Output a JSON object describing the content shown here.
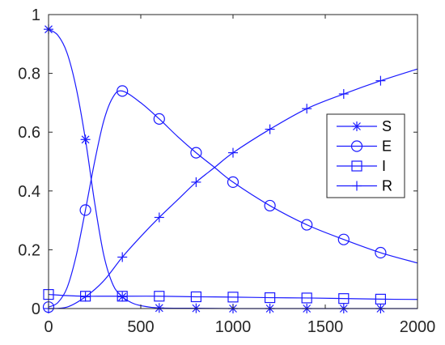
{
  "chart_data": {
    "type": "line",
    "title": "",
    "xlabel": "",
    "ylabel": "",
    "xlim": [
      0,
      2000
    ],
    "ylim": [
      0,
      1
    ],
    "grid": false,
    "legend_position": "right-middle",
    "x_ticks": [
      0,
      500,
      1000,
      1500,
      2000
    ],
    "x_tick_labels": [
      "0",
      "500",
      "1000",
      "1500",
      "2000"
    ],
    "y_ticks": [
      0,
      0.2,
      0.4,
      0.6,
      0.8,
      1
    ],
    "y_tick_labels": [
      "0",
      "0.2",
      "0.4",
      "0.6",
      "0.8",
      "1"
    ],
    "line_color": "#1a1aff",
    "series": [
      {
        "name": "S",
        "marker": "asterisk",
        "x": [
          0,
          50,
          100,
          150,
          200,
          250,
          300,
          350,
          400,
          450,
          500,
          600,
          800,
          1000,
          1200,
          1400,
          1600,
          1800,
          2000
        ],
        "values": [
          0.95,
          0.93,
          0.87,
          0.75,
          0.575,
          0.36,
          0.18,
          0.08,
          0.04,
          0.02,
          0.01,
          0.002,
          0.001,
          0.0,
          0.0,
          0.0,
          0.0,
          0.0,
          0.0
        ],
        "marker_x": [
          0,
          200,
          400,
          600,
          800,
          1000,
          1200,
          1400,
          1600,
          1800
        ]
      },
      {
        "name": "E",
        "marker": "circle",
        "x": [
          0,
          50,
          100,
          150,
          200,
          250,
          300,
          350,
          400,
          500,
          600,
          700,
          800,
          900,
          1000,
          1200,
          1400,
          1600,
          1800,
          2000
        ],
        "values": [
          0.005,
          0.02,
          0.07,
          0.18,
          0.335,
          0.5,
          0.64,
          0.72,
          0.74,
          0.7,
          0.645,
          0.585,
          0.53,
          0.48,
          0.43,
          0.35,
          0.285,
          0.235,
          0.19,
          0.155
        ],
        "marker_x": [
          0,
          200,
          400,
          600,
          800,
          1000,
          1200,
          1400,
          1600,
          1800
        ]
      },
      {
        "name": "I",
        "marker": "square",
        "x": [
          0,
          100,
          200,
          300,
          400,
          600,
          800,
          1000,
          1200,
          1400,
          1600,
          1800,
          2000
        ],
        "values": [
          0.048,
          0.044,
          0.042,
          0.042,
          0.042,
          0.042,
          0.04,
          0.039,
          0.037,
          0.036,
          0.034,
          0.032,
          0.031
        ],
        "marker_x": [
          0,
          200,
          400,
          600,
          800,
          1000,
          1200,
          1400,
          1600,
          1800
        ]
      },
      {
        "name": "R",
        "marker": "plus",
        "x": [
          0,
          100,
          200,
          300,
          400,
          500,
          600,
          700,
          800,
          900,
          1000,
          1200,
          1400,
          1600,
          1800,
          2000
        ],
        "values": [
          0.0,
          0.005,
          0.04,
          0.095,
          0.175,
          0.245,
          0.31,
          0.37,
          0.43,
          0.48,
          0.53,
          0.61,
          0.68,
          0.73,
          0.775,
          0.815
        ],
        "marker_x": [
          0,
          200,
          400,
          600,
          800,
          1000,
          1200,
          1400,
          1600,
          1800
        ]
      }
    ]
  }
}
